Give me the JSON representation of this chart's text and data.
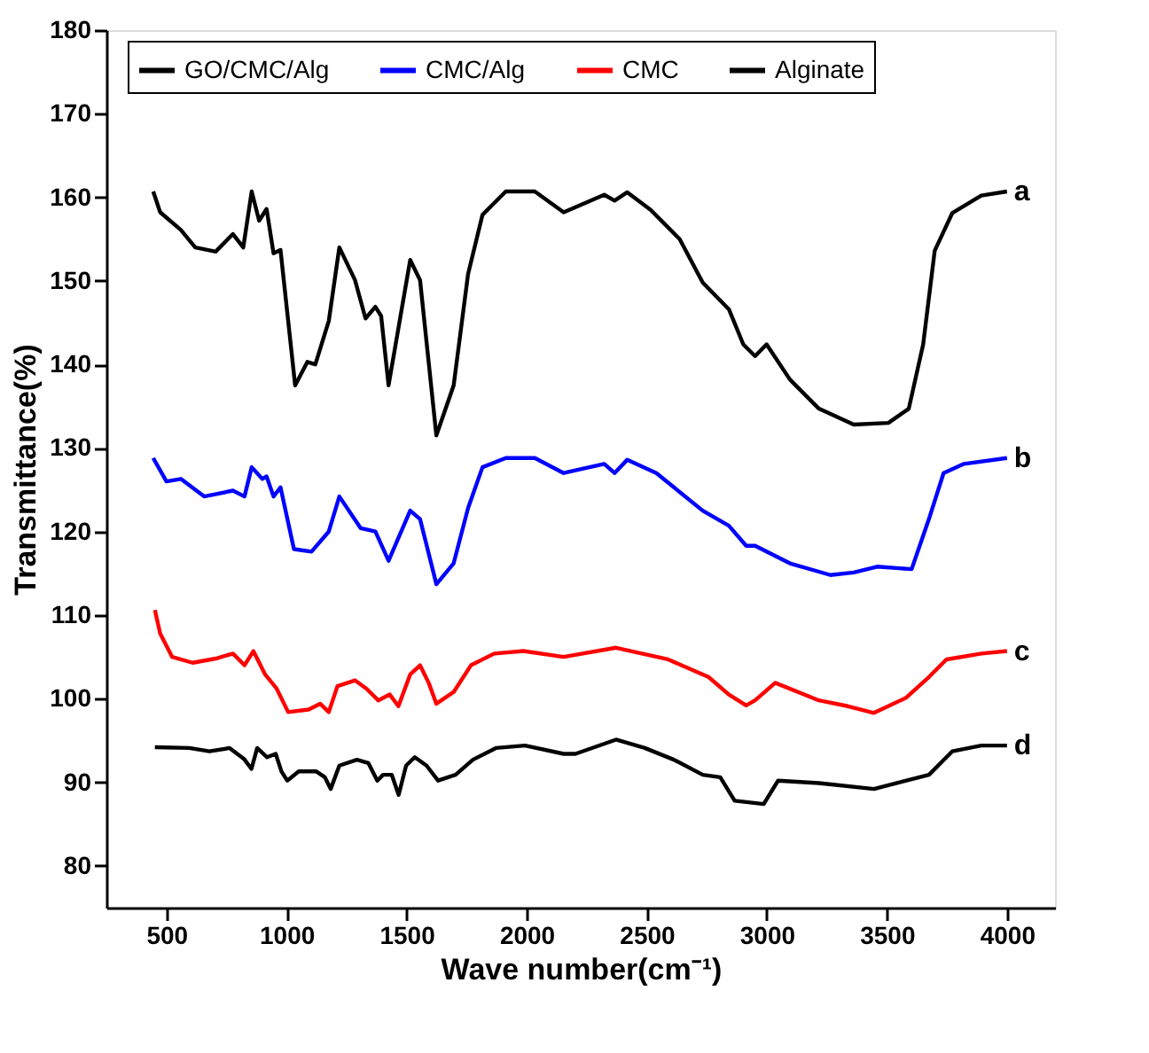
{
  "chart_data": {
    "type": "line",
    "xlabel": "Wave number(cm⁻¹)",
    "ylabel": "Transmittance(%)",
    "xlim": [
      250,
      4200
    ],
    "ylim": [
      75,
      180
    ],
    "xticks": [
      500,
      1000,
      1500,
      2000,
      2500,
      3000,
      3500,
      4000
    ],
    "yticks": [
      80,
      90,
      100,
      110,
      120,
      130,
      140,
      150,
      160,
      170,
      180
    ],
    "grid": false,
    "legend": "top",
    "line_style": "solid",
    "marker": "none",
    "series": [
      {
        "name": "GO/CMC/Alg",
        "color": "#000000",
        "x": [
          445,
          474,
          560,
          620,
          705,
          777,
          820,
          855,
          886,
          917,
          946,
          975,
          1036,
          1087,
          1120,
          1176,
          1220,
          1285,
          1329,
          1370,
          1394,
          1425,
          1515,
          1556,
          1624,
          1696,
          1756,
          1816,
          1913,
          2034,
          2154,
          2323,
          2366,
          2419,
          2516,
          2637,
          2733,
          2842,
          2902,
          2951,
          2999,
          3096,
          3217,
          3362,
          3506,
          3591,
          3651,
          3699,
          3772,
          3893,
          4000
        ],
        "values": [
          160.7,
          158.2,
          156.1,
          154,
          153.5,
          155.6,
          154,
          160.7,
          157.2,
          158.6,
          153.3,
          153.7,
          137.5,
          140.3,
          140,
          145.2,
          154,
          150.1,
          145.5,
          146.9,
          145.8,
          137.5,
          152.5,
          150.1,
          131.5,
          137.5,
          150.8,
          157.9,
          160.7,
          160.7,
          158.2,
          160.3,
          159.6,
          160.6,
          158.5,
          155,
          149.8,
          146.6,
          142.4,
          141,
          142.4,
          138.2,
          134.7,
          132.8,
          133,
          134.7,
          142.4,
          153.6,
          158.1,
          160.2,
          160.7
        ]
      },
      {
        "name": "CMC/Alg",
        "color": "#0000ff",
        "x": [
          445,
          500,
          560,
          657,
          777,
          825,
          855,
          899,
          917,
          946,
          975,
          1031,
          1104,
          1176,
          1220,
          1309,
          1370,
          1425,
          1515,
          1556,
          1624,
          1696,
          1756,
          1816,
          1913,
          2034,
          2154,
          2323,
          2366,
          2419,
          2540,
          2733,
          2842,
          2914,
          2951,
          3096,
          3265,
          3362,
          3459,
          3603,
          3675,
          3736,
          3821,
          4000
        ],
        "values": [
          128.8,
          126.0,
          126.3,
          124.2,
          124.9,
          124.2,
          127.7,
          126.3,
          126.6,
          124.2,
          125.3,
          117.9,
          117.6,
          120.0,
          124.2,
          120.4,
          120.0,
          116.5,
          122.5,
          121.5,
          113.7,
          116.2,
          122.8,
          127.7,
          128.8,
          128.8,
          127.0,
          128.1,
          127.0,
          128.6,
          127.0,
          122.5,
          120.7,
          118.3,
          118.3,
          116.2,
          114.8,
          115.1,
          115.8,
          115.5,
          121.5,
          127.0,
          128.1,
          128.8
        ]
      },
      {
        "name": "CMC",
        "color": "#ff0000",
        "x": [
          452,
          474,
          524,
          609,
          705,
          777,
          825,
          862,
          911,
          959,
          1007,
          1092,
          1140,
          1176,
          1212,
          1285,
          1333,
          1382,
          1430,
          1466,
          1515,
          1556,
          1592,
          1624,
          1696,
          1768,
          1865,
          1986,
          2154,
          2372,
          2589,
          2757,
          2842,
          2914,
          2951,
          3035,
          3217,
          3338,
          3446,
          3579,
          3675,
          3748,
          3893,
          4000
        ],
        "values": [
          110.6,
          107.8,
          105.0,
          104.3,
          104.8,
          105.4,
          104.0,
          105.7,
          102.9,
          101.2,
          98.4,
          98.7,
          99.4,
          98.4,
          101.5,
          102.2,
          101.2,
          99.8,
          100.5,
          99.1,
          102.9,
          104.0,
          101.9,
          99.4,
          100.8,
          104.0,
          105.4,
          105.7,
          105.0,
          106.1,
          104.7,
          102.6,
          100.5,
          99.2,
          99.8,
          101.9,
          99.8,
          99.1,
          98.3,
          100.1,
          102.6,
          104.7,
          105.4,
          105.7
        ]
      },
      {
        "name": "Alginate",
        "color": "#000000",
        "x": [
          452,
          595,
          679,
          763,
          823,
          854,
          878,
          919,
          955,
          979,
          1003,
          1051,
          1124,
          1160,
          1184,
          1220,
          1293,
          1341,
          1378,
          1402,
          1438,
          1467,
          1498,
          1534,
          1583,
          1631,
          1704,
          1776,
          1872,
          1993,
          2154,
          2203,
          2372,
          2492,
          2613,
          2733,
          2806,
          2866,
          2987,
          3047,
          3217,
          3446,
          3675,
          3772,
          3893,
          4000
        ],
        "values": [
          94.2,
          94.1,
          93.7,
          94.1,
          92.8,
          91.6,
          94.1,
          93.0,
          93.4,
          91.3,
          90.2,
          91.3,
          91.3,
          90.6,
          89.2,
          92.0,
          92.7,
          92.3,
          90.2,
          90.9,
          90.9,
          88.5,
          92.0,
          93.0,
          92.0,
          90.2,
          90.9,
          92.7,
          94.1,
          94.4,
          93.4,
          93.4,
          95.1,
          94.1,
          92.7,
          90.9,
          90.6,
          87.8,
          87.4,
          90.2,
          89.9,
          89.2,
          90.9,
          93.7,
          94.4,
          94.4
        ]
      }
    ],
    "annotations": [
      "a",
      "b",
      "c",
      "d"
    ]
  }
}
